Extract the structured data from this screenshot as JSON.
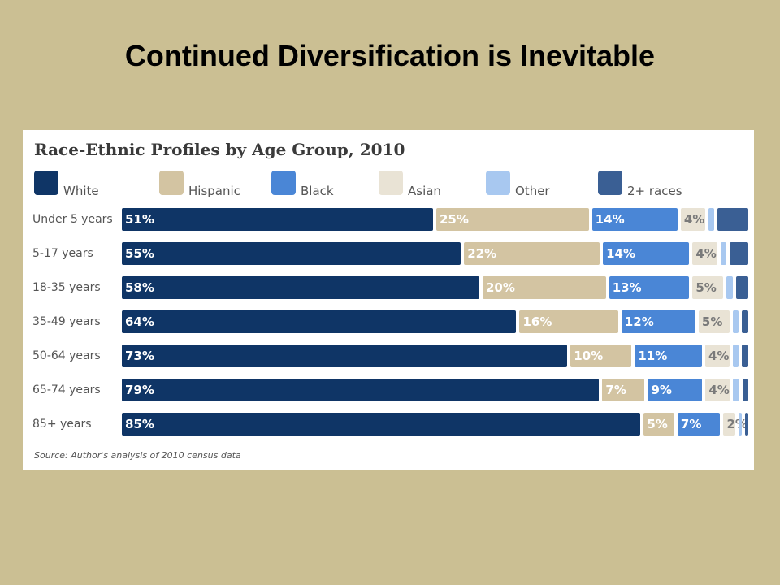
{
  "slide": {
    "title": "Continued Diversification is Inevitable"
  },
  "chart_data": {
    "type": "bar",
    "orientation": "horizontal",
    "stacked": true,
    "title": "Race-Ethnic Profiles by Age Group, 2010",
    "source": "Source: Author's analysis of 2010 census data",
    "legend_position": "top",
    "categories": [
      "Under 5 years",
      "5-17 years",
      "18-35 years",
      "35-49 years",
      "50-64 years",
      "65-74 years",
      "85+ years"
    ],
    "series": [
      {
        "name": "White",
        "color": "#0f3566",
        "label_color": "#ffffff",
        "values": [
          51,
          55,
          58,
          64,
          73,
          79,
          85
        ],
        "labels": [
          "51%",
          "55%",
          "58%",
          "64%",
          "73%",
          "79%",
          "85%"
        ]
      },
      {
        "name": "Hispanic",
        "color": "#d3c4a2",
        "label_color": "#ffffff",
        "values": [
          25,
          22,
          20,
          16,
          10,
          7,
          5
        ],
        "labels": [
          "25%",
          "22%",
          "20%",
          "16%",
          "10%",
          "7%",
          "5%"
        ]
      },
      {
        "name": "Black",
        "color": "#4a86d6",
        "label_color": "#ffffff",
        "values": [
          14,
          14,
          13,
          12,
          11,
          9,
          7
        ],
        "labels": [
          "14%",
          "14%",
          "13%",
          "12%",
          "11%",
          "9%",
          "7%"
        ]
      },
      {
        "name": "Asian",
        "color": "#e9e3d5",
        "label_color": "#7a7a7a",
        "values": [
          4,
          4,
          5,
          5,
          4,
          4,
          2
        ],
        "labels": [
          "4%",
          "4%",
          "5%",
          "5%",
          "4%",
          "4%",
          "2%"
        ]
      },
      {
        "name": "Other",
        "color": "#a8c8f0",
        "label_color": "#ffffff",
        "values": [
          1,
          1,
          1,
          1,
          1,
          1,
          0.5
        ],
        "labels": [
          "",
          "",
          "",
          "",
          "",
          "",
          ""
        ]
      },
      {
        "name": "2+ races",
        "color": "#3a5f94",
        "label_color": "#ffffff",
        "values": [
          5,
          3,
          2,
          1,
          1,
          1,
          0.5
        ],
        "labels": [
          "",
          "",
          "",
          "",
          "",
          "",
          ""
        ]
      }
    ]
  }
}
